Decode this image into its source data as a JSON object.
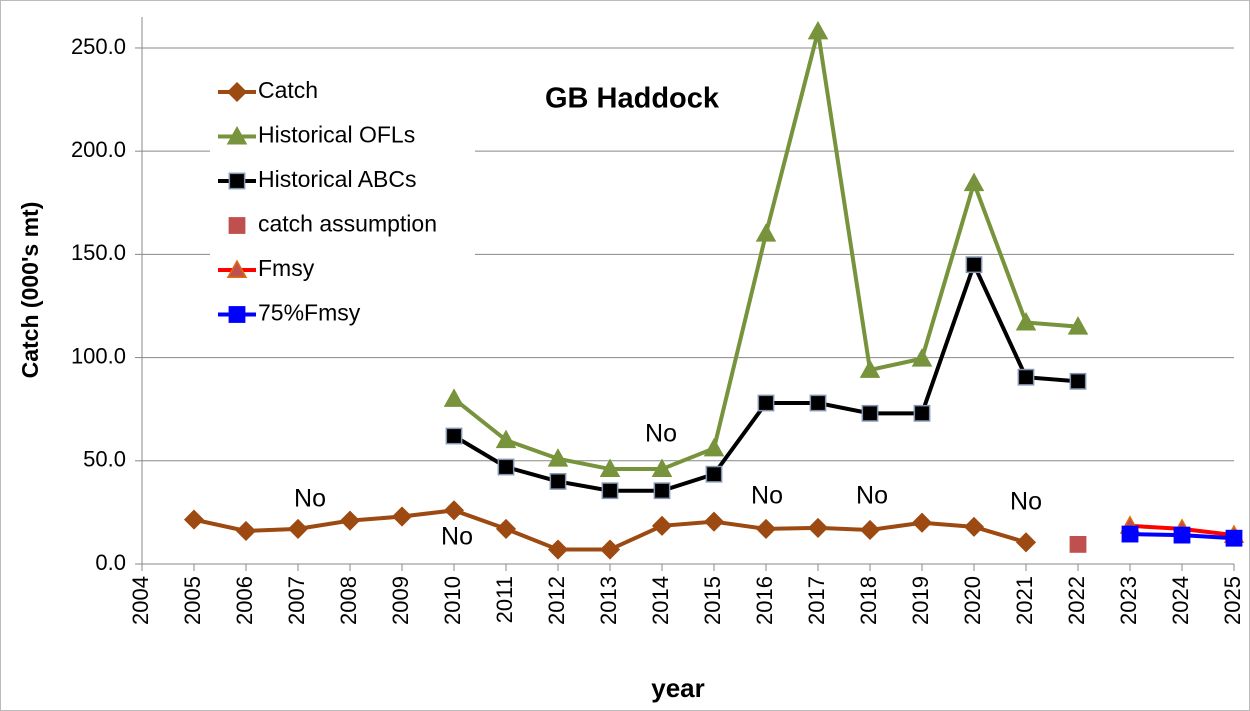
{
  "chart_data": {
    "type": "line",
    "title": "GB Haddock",
    "xlabel": "year",
    "ylabel": "Catch (000's mt)",
    "x": [
      2004,
      2005,
      2006,
      2007,
      2008,
      2009,
      2010,
      2011,
      2012,
      2013,
      2014,
      2015,
      2016,
      2017,
      2018,
      2019,
      2020,
      2021,
      2022,
      2023,
      2024,
      2025
    ],
    "xlim": [
      2004,
      2025
    ],
    "xticks": [
      2004,
      2005,
      2006,
      2007,
      2008,
      2009,
      2010,
      2011,
      2012,
      2013,
      2014,
      2015,
      2016,
      2017,
      2018,
      2019,
      2020,
      2021,
      2022,
      2023,
      2024,
      2025
    ],
    "ylim": [
      0,
      265
    ],
    "yticks": [
      {
        "value": 0,
        "label": "0.0"
      },
      {
        "value": 50,
        "label": "50.0"
      },
      {
        "value": 100,
        "label": "100.0"
      },
      {
        "value": 150,
        "label": "150.0"
      },
      {
        "value": 200,
        "label": "200.0"
      },
      {
        "value": 250,
        "label": "250.0"
      }
    ],
    "grid": true,
    "legend": "upper left",
    "series": [
      {
        "name": "Catch",
        "color": "#9c4a12",
        "marker": "diamond",
        "line": true,
        "values": [
          null,
          21.5,
          16,
          17,
          21,
          23,
          26,
          17,
          7,
          7,
          18.5,
          20.5,
          17,
          17.5,
          16.5,
          20,
          18,
          10.5,
          null,
          null,
          null,
          null
        ]
      },
      {
        "name": "Historical OFLs",
        "color": "#77933c",
        "marker": "triangle",
        "line": true,
        "values": [
          null,
          null,
          null,
          null,
          null,
          null,
          80,
          60,
          51,
          46,
          46,
          56,
          160,
          258,
          94,
          99.5,
          184.5,
          117,
          115,
          null,
          null,
          null
        ]
      },
      {
        "name": "Historical ABCs",
        "color": "#000000",
        "marker": "square",
        "line": true,
        "values": [
          null,
          null,
          null,
          null,
          null,
          null,
          62,
          47,
          40,
          35.5,
          35.5,
          43.5,
          78,
          78,
          73,
          73,
          145,
          90.5,
          88.5,
          null,
          null,
          null
        ]
      },
      {
        "name": "catch assumption",
        "color": "#c0504d",
        "marker": "square",
        "line": false,
        "values": [
          null,
          null,
          null,
          null,
          null,
          null,
          null,
          null,
          null,
          null,
          null,
          null,
          null,
          null,
          null,
          null,
          null,
          null,
          9.5,
          null,
          null,
          null
        ]
      },
      {
        "name": "Fmsy",
        "color": "#ff0000",
        "marker": "triangle",
        "line": true,
        "values": [
          null,
          null,
          null,
          null,
          null,
          null,
          null,
          null,
          null,
          null,
          null,
          null,
          null,
          null,
          null,
          null,
          null,
          null,
          null,
          18.5,
          17,
          14
        ]
      },
      {
        "name": "75%Fmsy",
        "color": "#0000ff",
        "marker": "square",
        "line": true,
        "values": [
          null,
          null,
          null,
          null,
          null,
          null,
          null,
          null,
          null,
          null,
          null,
          null,
          null,
          null,
          null,
          null,
          null,
          null,
          null,
          14.5,
          14,
          12.5
        ]
      }
    ],
    "annotations": [
      "No",
      "No",
      "No",
      "No",
      "No",
      "No"
    ]
  }
}
